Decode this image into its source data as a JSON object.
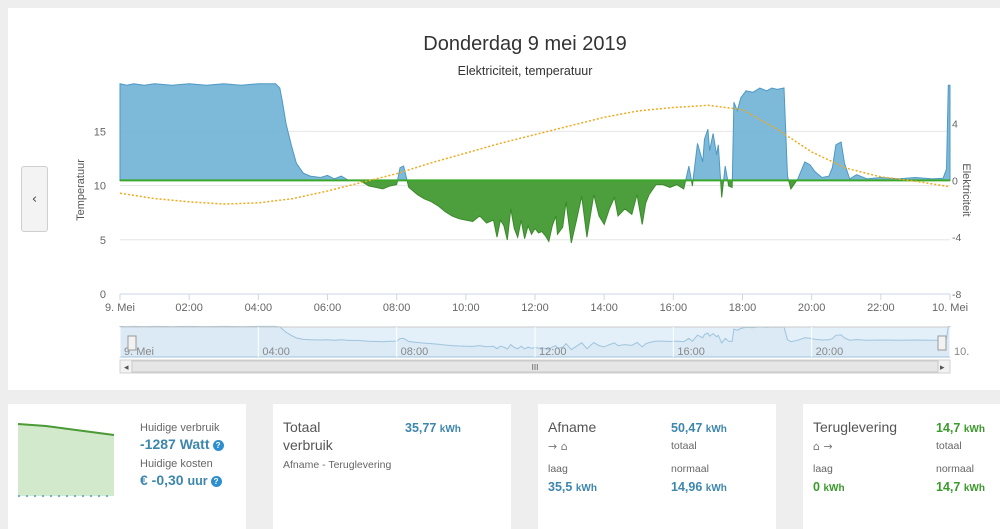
{
  "chart": {
    "title": "Donderdag 9 mei 2019",
    "subtitle": "Elektriciteit, temperatuur",
    "left_axis_label": "Temperatuur",
    "right_axis_label": "Elektriciteit",
    "back_glyph": "‹",
    "colors": {
      "consumption": "#6fb3d6",
      "return": "#4c9f3c",
      "temperature": "#f0a91a",
      "zero_line": "#3aa62a"
    }
  },
  "chart_data": {
    "type": "area",
    "title": "Donderdag 9 mei 2019",
    "subtitle": "Elektriciteit, temperatuur",
    "xlabel": "",
    "x_ticks": [
      "9. Mei",
      "02:00",
      "04:00",
      "06:00",
      "08:00",
      "10:00",
      "12:00",
      "14:00",
      "16:00",
      "18:00",
      "20:00",
      "22:00",
      "10. Mei"
    ],
    "x_range_hours": [
      0,
      24
    ],
    "left_axis": {
      "label": "Temperatuur",
      "ticks": [
        0,
        5,
        10,
        15
      ],
      "range": [
        0,
        19
      ]
    },
    "right_axis": {
      "label": "Elektriciteit",
      "ticks": [
        -8,
        -4,
        0,
        4
      ],
      "range": [
        -8,
        6.5
      ]
    },
    "series": [
      {
        "name": "Elektriciteit",
        "axis": "right",
        "points": [
          [
            0,
            6.8
          ],
          [
            0.2,
            6.7
          ],
          [
            0.4,
            6.8
          ],
          [
            0.7,
            6.7
          ],
          [
            1.0,
            6.8
          ],
          [
            1.5,
            6.7
          ],
          [
            2.0,
            6.8
          ],
          [
            2.5,
            6.7
          ],
          [
            3.0,
            6.8
          ],
          [
            3.5,
            6.7
          ],
          [
            4.0,
            6.8
          ],
          [
            4.5,
            6.8
          ],
          [
            4.62,
            6.5
          ],
          [
            4.7,
            5.5
          ],
          [
            4.8,
            4.0
          ],
          [
            4.95,
            2.5
          ],
          [
            5.1,
            1.2
          ],
          [
            5.3,
            0.5
          ],
          [
            5.5,
            0.3
          ],
          [
            5.8,
            0.2
          ],
          [
            6.0,
            0.35
          ],
          [
            6.2,
            0.1
          ],
          [
            6.4,
            0.3
          ],
          [
            6.6,
            0.0
          ],
          [
            6.9,
            0.0
          ],
          [
            7.0,
            -0.1
          ],
          [
            7.2,
            -0.4
          ],
          [
            7.4,
            -0.5
          ],
          [
            7.6,
            -0.6
          ],
          [
            7.8,
            -0.4
          ],
          [
            8.0,
            -0.3
          ],
          [
            8.1,
            0.9
          ],
          [
            8.2,
            1.0
          ],
          [
            8.35,
            -0.5
          ],
          [
            8.6,
            -1.0
          ],
          [
            8.8,
            -1.3
          ],
          [
            9.0,
            -1.5
          ],
          [
            9.2,
            -1.8
          ],
          [
            9.4,
            -2.2
          ],
          [
            9.6,
            -2.5
          ],
          [
            9.8,
            -2.7
          ],
          [
            10.0,
            -2.8
          ],
          [
            10.2,
            -2.9
          ],
          [
            10.4,
            -2.5
          ],
          [
            10.6,
            -3.0
          ],
          [
            10.8,
            -2.8
          ],
          [
            10.9,
            -4.0
          ],
          [
            11.0,
            -2.8
          ],
          [
            11.1,
            -3.2
          ],
          [
            11.2,
            -4.2
          ],
          [
            11.3,
            -2.0
          ],
          [
            11.4,
            -3.4
          ],
          [
            11.5,
            -4.0
          ],
          [
            11.6,
            -2.8
          ],
          [
            11.7,
            -4.1
          ],
          [
            11.8,
            -3.2
          ],
          [
            11.9,
            -3.8
          ],
          [
            12.0,
            -3.4
          ],
          [
            12.1,
            -3.7
          ],
          [
            12.2,
            -3.6
          ],
          [
            12.3,
            -3.9
          ],
          [
            12.4,
            -4.3
          ],
          [
            12.5,
            -3.2
          ],
          [
            12.6,
            -2.5
          ],
          [
            12.65,
            -3.8
          ],
          [
            12.8,
            -3.3
          ],
          [
            12.9,
            -1.5
          ],
          [
            13.05,
            -4.4
          ],
          [
            13.2,
            -2.8
          ],
          [
            13.35,
            -1.1
          ],
          [
            13.5,
            -4.0
          ],
          [
            13.6,
            -2.5
          ],
          [
            13.7,
            -1.0
          ],
          [
            13.85,
            -2.5
          ],
          [
            14.0,
            -3.1
          ],
          [
            14.15,
            -2.0
          ],
          [
            14.3,
            -1.2
          ],
          [
            14.4,
            -2.5
          ],
          [
            14.6,
            -2.0
          ],
          [
            14.8,
            -2.4
          ],
          [
            14.95,
            -1.0
          ],
          [
            15.1,
            -3.1
          ],
          [
            15.2,
            -1.6
          ],
          [
            15.3,
            -1.0
          ],
          [
            15.5,
            -0.3
          ],
          [
            15.7,
            -0.3
          ],
          [
            15.9,
            -0.5
          ],
          [
            16.1,
            -0.3
          ],
          [
            16.3,
            -0.6
          ],
          [
            16.45,
            1.0
          ],
          [
            16.55,
            -0.4
          ],
          [
            16.7,
            2.6
          ],
          [
            16.85,
            1.3
          ],
          [
            16.9,
            2.9
          ],
          [
            17.0,
            3.6
          ],
          [
            17.05,
            2.1
          ],
          [
            17.15,
            3.3
          ],
          [
            17.25,
            1.8
          ],
          [
            17.3,
            2.5
          ],
          [
            17.4,
            -1.2
          ],
          [
            17.5,
            1.0
          ],
          [
            17.6,
            -0.4
          ],
          [
            17.7,
            -0.5
          ],
          [
            17.75,
            5.5
          ],
          [
            17.85,
            4.9
          ],
          [
            17.95,
            5.8
          ],
          [
            18.1,
            6.3
          ],
          [
            18.3,
            6.2
          ],
          [
            18.5,
            6.5
          ],
          [
            18.7,
            6.3
          ],
          [
            18.85,
            6.5
          ],
          [
            19.0,
            6.4
          ],
          [
            19.2,
            6.5
          ],
          [
            19.3,
            0.3
          ],
          [
            19.4,
            -0.6
          ],
          [
            19.6,
            0.1
          ],
          [
            19.8,
            1.3
          ],
          [
            19.95,
            1.1
          ],
          [
            20.1,
            0.6
          ],
          [
            20.3,
            0.2
          ],
          [
            20.5,
            0.3
          ],
          [
            20.6,
            0.9
          ],
          [
            20.7,
            2.5
          ],
          [
            20.85,
            2.7
          ],
          [
            20.95,
            1.2
          ],
          [
            21.1,
            0.1
          ],
          [
            21.3,
            0.4
          ],
          [
            21.6,
            0.1
          ],
          [
            22.0,
            0.2
          ],
          [
            22.5,
            0.1
          ],
          [
            23.0,
            0.2
          ],
          [
            23.5,
            0.1
          ],
          [
            23.8,
            0.15
          ],
          [
            23.9,
            0.8
          ],
          [
            23.95,
            6.7
          ],
          [
            24.0,
            6.7
          ]
        ]
      },
      {
        "name": "Temperatuur",
        "axis": "left",
        "style": "dotted",
        "points": [
          [
            0,
            9.3
          ],
          [
            1,
            8.8
          ],
          [
            2,
            8.5
          ],
          [
            3,
            8.3
          ],
          [
            4,
            8.4
          ],
          [
            5,
            8.8
          ],
          [
            6,
            9.5
          ],
          [
            7,
            10.3
          ],
          [
            8,
            11.1
          ],
          [
            9,
            12.1
          ],
          [
            10,
            13.0
          ],
          [
            11,
            13.9
          ],
          [
            12,
            14.7
          ],
          [
            13,
            15.5
          ],
          [
            14,
            16.3
          ],
          [
            15,
            16.9
          ],
          [
            16,
            17.2
          ],
          [
            17,
            17.4
          ],
          [
            18,
            17.0
          ],
          [
            19,
            15.2
          ],
          [
            20,
            13.1
          ],
          [
            21,
            11.6
          ],
          [
            22,
            10.8
          ],
          [
            23,
            10.4
          ],
          [
            24,
            9.9
          ]
        ]
      }
    ]
  },
  "cards": {
    "current": {
      "label_usage": "Huidige verbruik",
      "value_usage": "-1287 Watt",
      "label_cost": "Huidige kosten",
      "value_cost": "€ -0,30",
      "cost_unit": "uur",
      "info_glyph": "?"
    },
    "total": {
      "title": "Totaal verbruik",
      "value": "35,77",
      "unit": "kWh",
      "sub": "Afname - Teruglevering"
    },
    "afname": {
      "title": "Afname",
      "direction": "→ ⌂",
      "total_value": "50,47",
      "total_unit": "kWh",
      "total_label": "totaal",
      "low_label": "laag",
      "low_value": "35,5",
      "low_unit": "kWh",
      "normal_label": "normaal",
      "normal_value": "14,96",
      "normal_unit": "kWh"
    },
    "teruglevering": {
      "title": "Teruglevering",
      "direction": "⌂ →",
      "total_value": "14,7",
      "total_unit": "kWh",
      "total_label": "totaal",
      "low_label": "laag",
      "low_value": "0",
      "low_unit": "kWh",
      "normal_label": "normaal",
      "normal_value": "14,7",
      "normal_unit": "kWh"
    }
  },
  "navigator": {
    "x_ticks": [
      "9. Mei",
      "04:00",
      "08:00",
      "12:00",
      "16:00",
      "20:00",
      "10."
    ],
    "scroll_grip": "III"
  }
}
